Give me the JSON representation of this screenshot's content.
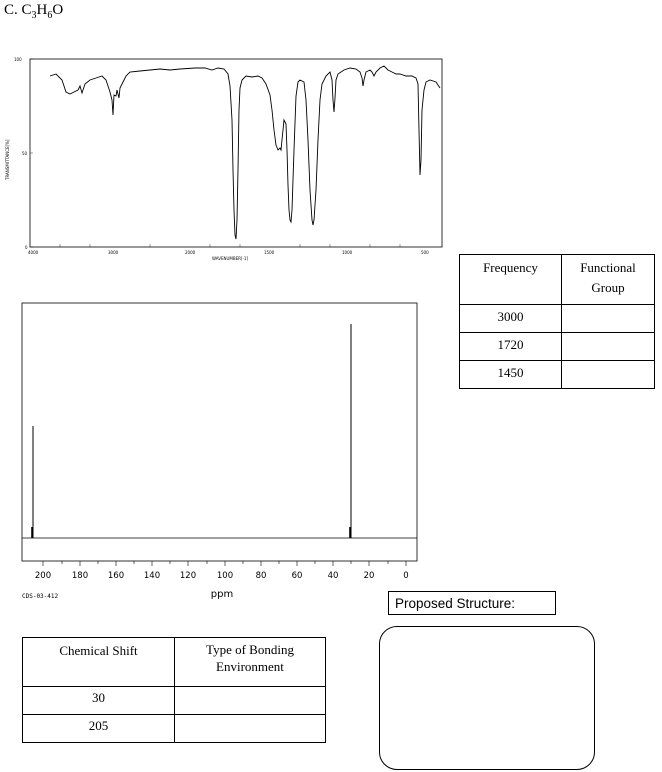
{
  "title": {
    "prefix": "C. C",
    "sub1": "3",
    "mid1": "H",
    "sub2": "6",
    "suffix": "O"
  },
  "ir_spectrum": {
    "y_axis_label": "TRANSMITTANCE[%]",
    "x_axis_label": "WAVENUMBER[-1]",
    "y_ticks": [
      "100",
      "50",
      "0"
    ],
    "x_ticks": [
      "4000",
      "3000",
      "2000",
      "1500",
      "1000",
      "500"
    ]
  },
  "ir_table": {
    "headers": [
      "Frequency",
      "Functional Group"
    ],
    "rows": [
      {
        "frequency": "3000",
        "group": ""
      },
      {
        "frequency": "1720",
        "group": ""
      },
      {
        "frequency": "1450",
        "group": ""
      }
    ]
  },
  "cnmr": {
    "x_ticks": [
      "200",
      "180",
      "160",
      "140",
      "120",
      "100",
      "80",
      "60",
      "40",
      "20",
      "0"
    ],
    "unit": "ppm",
    "code": "CDS-03-412"
  },
  "shift_table": {
    "headers": [
      "Chemical Shift",
      "Type of Bonding Environment"
    ],
    "rows": [
      {
        "shift": "30",
        "env": ""
      },
      {
        "shift": "205",
        "env": ""
      }
    ]
  },
  "proposed_structure": {
    "label": "Proposed Structure:"
  }
}
